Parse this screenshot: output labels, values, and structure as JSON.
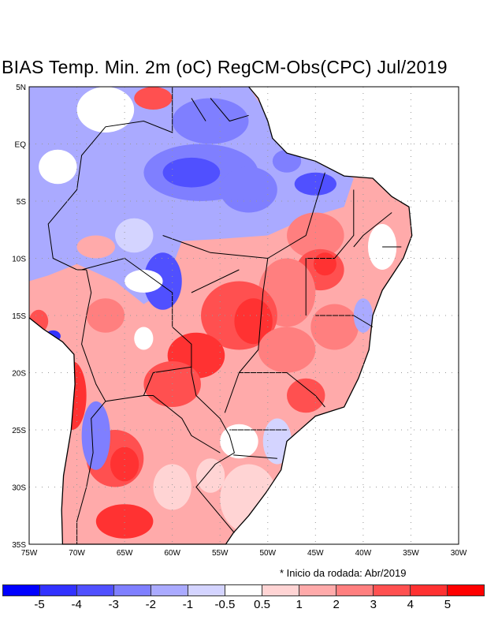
{
  "title": "BIAS Temp. Min. 2m (oC) RegCM-Obs(CPC) Jul/2019",
  "note": "* Inicio da rodada: Abr/2019",
  "map": {
    "lon_range": [
      -75,
      -30
    ],
    "lat_range": [
      -35,
      5
    ],
    "lat_labels": [
      "5N",
      "EQ",
      "5S",
      "10S",
      "15S",
      "20S",
      "25S",
      "30S",
      "35S"
    ],
    "lon_labels": [
      "75W",
      "70W",
      "65W",
      "60W",
      "55W",
      "50W",
      "45W",
      "40W",
      "35W",
      "30W"
    ]
  },
  "colorbar": {
    "colors": [
      "#0000ff",
      "#3232ff",
      "#5050ff",
      "#7f7fff",
      "#aaaaff",
      "#d4d4ff",
      "#ffffff",
      "#ffd4d4",
      "#ffaaaa",
      "#ff7f7f",
      "#ff5050",
      "#ff3232",
      "#ff0000"
    ],
    "labels": [
      "-5",
      "-4",
      "-3",
      "-2",
      "-1",
      "-0.5",
      "0.5",
      "1",
      "2",
      "3",
      "4",
      "5"
    ]
  }
}
